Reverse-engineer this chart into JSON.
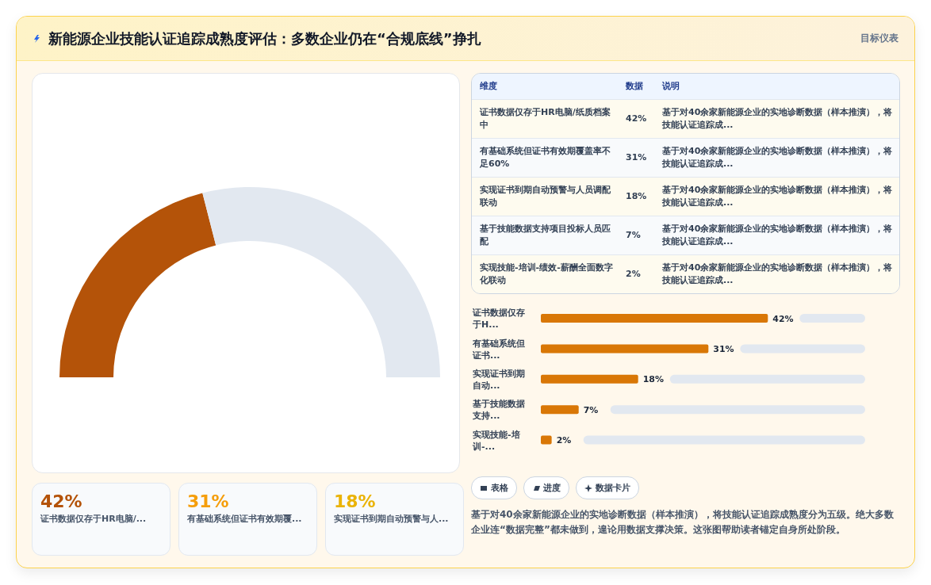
{
  "chart_data": [
    {
      "type": "other",
      "title": "新能源企业技能认证追踪成熟度评估：多数企业仍在“合规底线”挣扎",
      "annotations": [
        "目标仪表"
      ]
    },
    {
      "type": "donut",
      "categories": [
        null,
        null
      ],
      "values": [
        42,
        58
      ],
      "colors": [
        "#b45309",
        "#e2e8f0"
      ]
    },
    {
      "type": "other",
      "categories": [
        "证书数据仅存于HR电脑/纸质档案中",
        "有基础系统但证书有效期覆盖率不足60%",
        "实现证书到期自动预警与人员调配联动",
        "基于技能数据支持项目投标人员匹配",
        "实现技能-培训-绩效-薪酬全面数字化联动"
      ],
      "value_labels": [
        "42%",
        "31%",
        "18%",
        "7%",
        "2%"
      ],
      "annotations": [
        "维度",
        "数据",
        "说明",
        "基于对40余家新能源企业的实地诊断数据（样本推演），将技能认证追踪成...",
        "基于对40余家新能源企业的实地诊断数据（样本推演），将技能认证追踪成...",
        "基于对40余家新能源企业的实地诊断数据（样本推演），将技能认证追踪成...",
        "基于对40余家新能源企业的实地诊断数据（样本推演），将技能认证追踪成...",
        "基于对40余家新能源企业的实地诊断数据（样本推演），将技能认证追踪成..."
      ]
    },
    {
      "type": "bar",
      "orientation": "horizontal",
      "categories": [
        "证书数据仅存于H...",
        "有基础系统但证书...",
        "实现证书到期自动...",
        "基于技能数据支持...",
        "实现技能-培训-..."
      ],
      "series": [
        {
          "color": "#d97706",
          "values": [
            42,
            31,
            18,
            7,
            2
          ],
          "value_labels": [
            "42%",
            "31%",
            "18%",
            "7%",
            "2%"
          ]
        }
      ]
    },
    {
      "type": "other",
      "categories": [
        "证书数据仅存于HR电脑/...",
        "有基础系统但证书有效期覆...",
        "实现证书到期自动预警与人..."
      ],
      "value_labels": [
        "42%",
        "31%",
        "18%"
      ]
    },
    {
      "type": "other",
      "annotations": [
        "表格",
        "进度",
        "数据卡片",
        "基于对40余家新能源企业的实地诊断数据（样本推演），将技能认证追踪成熟度分为五级。绝大多数企业连“数据完整”都未做到，遑论用数据支撑决策。这张图帮助读者锚定自身所处阶段。"
      ]
    }
  ]
}
